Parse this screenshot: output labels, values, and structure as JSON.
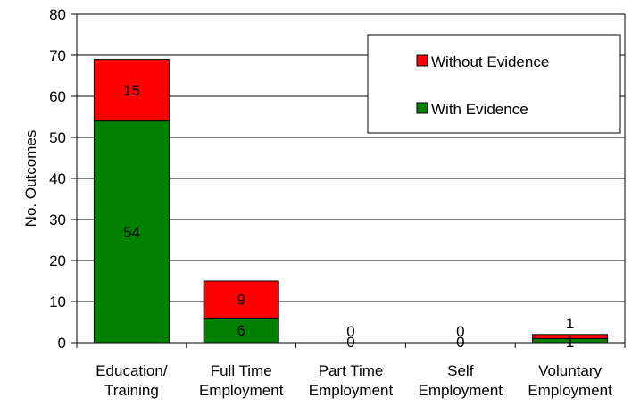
{
  "chart_data": {
    "type": "bar",
    "stacked": true,
    "title": "",
    "xlabel": "",
    "ylabel": "No. Outcomes",
    "ylim": [
      0,
      80
    ],
    "yticks": [
      0,
      10,
      20,
      30,
      40,
      50,
      60,
      70,
      80
    ],
    "grid": true,
    "legend_position": "top-right",
    "categories": [
      [
        "Education/",
        "Training"
      ],
      [
        "Full Time",
        "Employment"
      ],
      [
        "Part Time",
        "Employment"
      ],
      [
        "Self",
        "Employment"
      ],
      [
        "Voluntary",
        "Employment"
      ]
    ],
    "series": [
      {
        "name": "With Evidence",
        "color": "#008000",
        "values": [
          54,
          6,
          0,
          0,
          1
        ]
      },
      {
        "name": "Without Evidence",
        "color": "#ff0000",
        "values": [
          15,
          9,
          0,
          0,
          1
        ]
      }
    ],
    "legend_order": [
      1,
      0
    ]
  }
}
